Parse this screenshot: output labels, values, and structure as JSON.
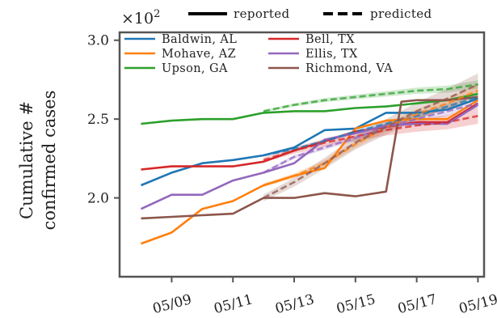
{
  "chart_data": {
    "type": "line",
    "ylabel": [
      "Cumulative #",
      "confirmed cases"
    ],
    "y_multiplier": "×10",
    "y_multiplier_exp": "2",
    "xlim": [
      7.3,
      19.2
    ],
    "ylim": [
      1.5,
      3.05
    ],
    "xticks": [
      9,
      11,
      13,
      15,
      17,
      19
    ],
    "xtick_labels": [
      "05/09",
      "05/11",
      "05/13",
      "05/15",
      "05/17",
      "05/19"
    ],
    "yticks": [
      2.0,
      2.5,
      3.0
    ],
    "ytick_labels": [
      "2.0",
      "2.5",
      "3.0"
    ],
    "grid": false,
    "style_legend": {
      "position": "top",
      "items": [
        {
          "label": "reported",
          "style": "solid"
        },
        {
          "label": "predicted",
          "style": "dashed"
        }
      ]
    },
    "series_legend": {
      "position": "top-left",
      "columns": [
        [
          "Baldwin, AL",
          "Mohave, AZ",
          "Upson, GA"
        ],
        [
          "Bell, TX",
          "Ellis, TX",
          "Richmond, VA"
        ]
      ]
    },
    "series": [
      {
        "name": "Baldwin, AL",
        "color": "#1f77b4",
        "reported": {
          "x": [
            8,
            9,
            10,
            11,
            12,
            13,
            14,
            15,
            16,
            17,
            18,
            19
          ],
          "y": [
            2.08,
            2.16,
            2.22,
            2.24,
            2.27,
            2.32,
            2.43,
            2.44,
            2.54,
            2.54,
            2.56,
            2.63
          ]
        },
        "predicted": {
          "x": [
            12,
            13,
            14,
            15,
            16,
            17,
            18,
            19
          ],
          "y": [
            2.27,
            2.31,
            2.36,
            2.42,
            2.47,
            2.52,
            2.58,
            2.64
          ]
        },
        "band": 0.02
      },
      {
        "name": "Mohave, AZ",
        "color": "#ff7f0e",
        "reported": {
          "x": [
            8,
            9,
            10,
            11,
            12,
            13,
            14,
            15,
            16,
            17,
            18,
            19
          ],
          "y": [
            1.71,
            1.78,
            1.93,
            1.98,
            2.08,
            2.14,
            2.19,
            2.44,
            2.49,
            2.5,
            2.5,
            2.62
          ]
        },
        "predicted": {
          "x": [
            12,
            13,
            14,
            15,
            16,
            17,
            18,
            19
          ],
          "y": [
            2.08,
            2.14,
            2.22,
            2.34,
            2.45,
            2.53,
            2.6,
            2.68
          ]
        },
        "band": 0.04
      },
      {
        "name": "Upson, GA",
        "color": "#2ca02c",
        "reported": {
          "x": [
            8,
            9,
            10,
            11,
            12,
            13,
            14,
            15,
            16,
            17,
            18,
            19
          ],
          "y": [
            2.47,
            2.49,
            2.5,
            2.5,
            2.54,
            2.55,
            2.55,
            2.57,
            2.58,
            2.6,
            2.62,
            2.66
          ]
        },
        "predicted": {
          "x": [
            12,
            13,
            14,
            15,
            16,
            17,
            18,
            19
          ],
          "y": [
            2.55,
            2.59,
            2.62,
            2.64,
            2.66,
            2.68,
            2.69,
            2.72
          ]
        },
        "band": 0.025
      },
      {
        "name": "Bell, TX",
        "color": "#d62728",
        "reported": {
          "x": [
            8,
            9,
            10,
            11,
            12,
            13,
            14,
            15,
            16,
            17,
            18,
            19
          ],
          "y": [
            2.18,
            2.2,
            2.2,
            2.2,
            2.23,
            2.3,
            2.36,
            2.42,
            2.45,
            2.48,
            2.48,
            2.6
          ]
        },
        "predicted": {
          "x": [
            12,
            13,
            14,
            15,
            16,
            17,
            18,
            19
          ],
          "y": [
            2.24,
            2.3,
            2.35,
            2.39,
            2.43,
            2.46,
            2.48,
            2.52
          ]
        },
        "band": 0.05
      },
      {
        "name": "Ellis, TX",
        "color": "#9467bd",
        "reported": {
          "x": [
            8,
            9,
            10,
            11,
            12,
            13,
            14,
            15,
            16,
            17,
            18,
            19
          ],
          "y": [
            1.93,
            2.02,
            2.02,
            2.11,
            2.16,
            2.22,
            2.37,
            2.41,
            2.46,
            2.47,
            2.47,
            2.59
          ]
        },
        "predicted": {
          "x": [
            12,
            13,
            14,
            15,
            16,
            17,
            18,
            19
          ],
          "y": [
            2.16,
            2.26,
            2.32,
            2.38,
            2.45,
            2.5,
            2.55,
            2.6
          ]
        },
        "band": 0.03
      },
      {
        "name": "Richmond, VA",
        "color": "#8c564b",
        "reported": {
          "x": [
            8,
            9,
            10,
            11,
            12,
            13,
            14,
            15,
            16,
            16.5,
            17,
            18,
            19
          ],
          "y": [
            1.87,
            1.88,
            1.89,
            1.9,
            2.0,
            2.0,
            2.03,
            2.01,
            2.04,
            2.61,
            2.62,
            2.62,
            2.64
          ]
        },
        "predicted": {
          "x": [
            12,
            13,
            14,
            15,
            16,
            17,
            18,
            19
          ],
          "y": [
            2.0,
            2.1,
            2.22,
            2.35,
            2.45,
            2.55,
            2.63,
            2.72
          ]
        },
        "band": 0.07
      }
    ]
  }
}
